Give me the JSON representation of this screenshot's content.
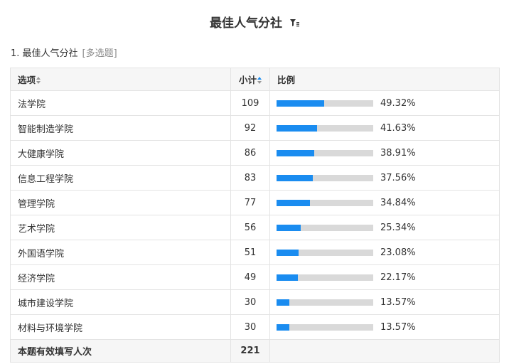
{
  "title": "最佳人气分社",
  "question": {
    "label": "1. 最佳人气分社",
    "type_tag": "[多选题]"
  },
  "table": {
    "headers": {
      "option": "选项",
      "count": "小计",
      "ratio": "比例"
    },
    "rows": [
      {
        "option": "法学院",
        "count": "109",
        "percent": "49.32%",
        "fraction": 0.4932
      },
      {
        "option": "智能制造学院",
        "count": "92",
        "percent": "41.63%",
        "fraction": 0.4163
      },
      {
        "option": "大健康学院",
        "count": "86",
        "percent": "38.91%",
        "fraction": 0.3891
      },
      {
        "option": "信息工程学院",
        "count": "83",
        "percent": "37.56%",
        "fraction": 0.3756
      },
      {
        "option": "管理学院",
        "count": "77",
        "percent": "34.84%",
        "fraction": 0.3484
      },
      {
        "option": "艺术学院",
        "count": "56",
        "percent": "25.34%",
        "fraction": 0.2534
      },
      {
        "option": "外国语学院",
        "count": "51",
        "percent": "23.08%",
        "fraction": 0.2308
      },
      {
        "option": "经济学院",
        "count": "49",
        "percent": "22.17%",
        "fraction": 0.2217
      },
      {
        "option": "城市建设学院",
        "count": "30",
        "percent": "13.57%",
        "fraction": 0.1357
      },
      {
        "option": "材料与环境学院",
        "count": "30",
        "percent": "13.57%",
        "fraction": 0.1357
      }
    ],
    "total": {
      "label": "本题有效填写人次",
      "count": "221"
    }
  },
  "colors": {
    "bar_fill": "#1a8cf0",
    "bar_track": "#d9d9d9",
    "sort_active": "#1a8cf0"
  },
  "icons": {
    "filter": "filter-icon",
    "sort": "sort-icon"
  }
}
